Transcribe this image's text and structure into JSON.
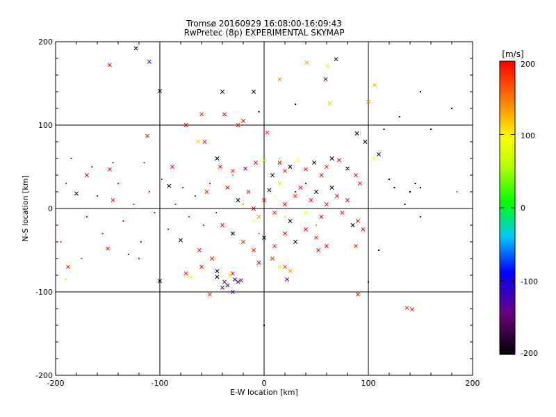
{
  "chart_data": {
    "type": "scatter",
    "title": "Tromsø 20160929 16:08:00-16:09:43",
    "subtitle": "RwPretec (8p) EXPERIMENTAL SKYMAP",
    "xlabel": "E-W location [km]",
    "ylabel": "N-S location [km]",
    "xlim": [
      -200,
      200
    ],
    "ylim": [
      -200,
      200
    ],
    "x_ticks": [
      "-200",
      "-100",
      "0",
      "100",
      "200"
    ],
    "y_ticks": [
      "-200",
      "-100",
      "0",
      "100",
      "200"
    ],
    "grid": true,
    "grid_values": [
      -100,
      0,
      100
    ],
    "colorbar": {
      "unit_label": "[m/s]",
      "range": [
        -200,
        200
      ],
      "ticks": [
        "200",
        "100",
        "0",
        "-100",
        "-200"
      ],
      "colormap": "black-purple-blue-cyan-green-yellow-orange-red"
    },
    "markers": {
      "large": "x (higher-power echoes)",
      "small": "dot (lower-power echoes)"
    },
    "series": [
      {
        "marker": "x",
        "points": [
          [
            -123,
            192,
            -200
          ],
          [
            -110,
            176,
            -120
          ],
          [
            -148,
            172,
            200
          ],
          [
            -100,
            141,
            -200
          ],
          [
            -60,
            113,
            190
          ],
          [
            -38,
            113,
            200
          ],
          [
            -25,
            100,
            190
          ],
          [
            -20,
            105,
            200
          ],
          [
            3,
            91,
            190
          ],
          [
            -112,
            87,
            200
          ],
          [
            -63,
            80,
            60
          ],
          [
            -57,
            80,
            190
          ],
          [
            -10,
            140,
            -200
          ],
          [
            41,
            175,
            140
          ],
          [
            61,
            171,
            70
          ],
          [
            69,
            179,
            -200
          ],
          [
            59,
            155,
            -140
          ],
          [
            15,
            155,
            150
          ],
          [
            63,
            126,
            130
          ],
          [
            106,
            148,
            140
          ],
          [
            100,
            128,
            150
          ],
          [
            89,
            90,
            -200
          ],
          [
            97,
            80,
            -200
          ],
          [
            105,
            60,
            100
          ],
          [
            110,
            65,
            -200
          ],
          [
            137,
            -119,
            190
          ],
          [
            142,
            -121,
            200
          ],
          [
            90,
            -103,
            200
          ],
          [
            -40,
            140,
            -200
          ],
          [
            -75,
            100,
            200
          ],
          [
            -148,
            47,
            200
          ],
          [
            -145,
            10,
            190
          ],
          [
            -150,
            -48,
            200
          ],
          [
            -180,
            18,
            -200
          ],
          [
            -188,
            -70,
            190
          ],
          [
            -170,
            40,
            200
          ],
          [
            -100,
            -87,
            -200
          ],
          [
            -88,
            50,
            200
          ],
          [
            -91,
            27,
            -200
          ],
          [
            -80,
            -38,
            -200
          ],
          [
            -62,
            -50,
            200
          ],
          [
            -55,
            20,
            190
          ],
          [
            -45,
            60,
            -200
          ],
          [
            -42,
            50,
            200
          ],
          [
            -30,
            45,
            190
          ],
          [
            -18,
            48,
            -150
          ],
          [
            -8,
            55,
            200
          ],
          [
            0,
            58,
            60
          ],
          [
            8,
            40,
            -200
          ],
          [
            15,
            55,
            200
          ],
          [
            20,
            45,
            190
          ],
          [
            25,
            50,
            -200
          ],
          [
            32,
            58,
            100
          ],
          [
            40,
            47,
            200
          ],
          [
            48,
            55,
            -200
          ],
          [
            55,
            40,
            200
          ],
          [
            60,
            50,
            190
          ],
          [
            65,
            60,
            -200
          ],
          [
            72,
            58,
            200
          ],
          [
            80,
            48,
            -200
          ],
          [
            88,
            40,
            200
          ],
          [
            92,
            30,
            190
          ],
          [
            -35,
            25,
            200
          ],
          [
            -25,
            10,
            -200
          ],
          [
            -15,
            20,
            190
          ],
          [
            -10,
            0,
            200
          ],
          [
            -5,
            -10,
            150
          ],
          [
            0,
            10,
            200
          ],
          [
            5,
            22,
            -200
          ],
          [
            10,
            -5,
            190
          ],
          [
            15,
            30,
            60
          ],
          [
            20,
            5,
            200
          ],
          [
            25,
            -15,
            -200
          ],
          [
            30,
            15,
            190
          ],
          [
            35,
            25,
            200
          ],
          [
            40,
            -5,
            100
          ],
          [
            45,
            10,
            200
          ],
          [
            50,
            20,
            -200
          ],
          [
            55,
            -10,
            200
          ],
          [
            60,
            5,
            190
          ],
          [
            65,
            25,
            -200
          ],
          [
            70,
            15,
            200
          ],
          [
            75,
            -5,
            190
          ],
          [
            80,
            10,
            200
          ],
          [
            85,
            -20,
            -200
          ],
          [
            90,
            -15,
            200
          ],
          [
            -40,
            -20,
            200
          ],
          [
            -30,
            -30,
            -200
          ],
          [
            -20,
            -40,
            190
          ],
          [
            -10,
            -50,
            200
          ],
          [
            0,
            -35,
            -200
          ],
          [
            10,
            -45,
            190
          ],
          [
            20,
            -30,
            200
          ],
          [
            30,
            -40,
            -200
          ],
          [
            40,
            -25,
            200
          ],
          [
            50,
            -35,
            190
          ],
          [
            60,
            -45,
            200
          ],
          [
            -50,
            -60,
            190
          ],
          [
            -60,
            -70,
            200
          ],
          [
            -45,
            -75,
            -200
          ],
          [
            -30,
            -78,
            200
          ],
          [
            -25,
            -88,
            -160
          ],
          [
            -35,
            -92,
            -130
          ],
          [
            -40,
            -95,
            -150
          ],
          [
            -30,
            -100,
            -140
          ],
          [
            -28,
            -85,
            -120
          ],
          [
            -22,
            -86,
            -150
          ],
          [
            -38,
            -88,
            -140
          ],
          [
            -45,
            -82,
            -200
          ],
          [
            -33,
            -80,
            60
          ],
          [
            -52,
            -103,
            190
          ],
          [
            -70,
            -82,
            80
          ],
          [
            -75,
            -78,
            190
          ],
          [
            20,
            -70,
            180
          ],
          [
            25,
            -75,
            150
          ],
          [
            22,
            -85,
            -140
          ],
          [
            15,
            -70,
            60
          ],
          [
            8,
            -60,
            190
          ],
          [
            -5,
            -65,
            200
          ],
          [
            52,
            -50,
            200
          ],
          [
            88,
            -45,
            190
          ],
          [
            95,
            -25,
            200
          ]
        ]
      },
      {
        "marker": "dot",
        "points": [
          [
            -160,
            15,
            200
          ],
          [
            -170,
            -10,
            190
          ],
          [
            -155,
            -30,
            200
          ],
          [
            -140,
            30,
            190
          ],
          [
            -135,
            -15,
            200
          ],
          [
            -125,
            5,
            190
          ],
          [
            -118,
            -40,
            200
          ],
          [
            -110,
            20,
            190
          ],
          [
            -105,
            -5,
            200
          ],
          [
            -98,
            35,
            190
          ],
          [
            -92,
            -25,
            200
          ],
          [
            -85,
            5,
            190
          ],
          [
            -78,
            25,
            200
          ],
          [
            -72,
            -10,
            190
          ],
          [
            -66,
            15,
            200
          ],
          [
            -58,
            -20,
            190
          ],
          [
            -52,
            30,
            200
          ],
          [
            -46,
            -5,
            190
          ],
          [
            -190,
            30,
            200
          ],
          [
            -195,
            -40,
            190
          ],
          [
            -185,
            60,
            200
          ],
          [
            -175,
            -60,
            190
          ],
          [
            -165,
            50,
            200
          ],
          [
            -145,
            55,
            190
          ],
          [
            -130,
            -55,
            200
          ],
          [
            -115,
            55,
            190
          ],
          [
            -120,
            -60,
            200
          ],
          [
            150,
            140,
            -200
          ],
          [
            160,
            95,
            -200
          ],
          [
            180,
            120,
            -200
          ],
          [
            130,
            110,
            -200
          ],
          [
            115,
            95,
            -200
          ],
          [
            120,
            35,
            -200
          ],
          [
            125,
            25,
            -200
          ],
          [
            140,
            20,
            -200
          ],
          [
            145,
            30,
            -200
          ],
          [
            150,
            25,
            -200
          ],
          [
            135,
            5,
            -200
          ],
          [
            110,
            -50,
            -200
          ],
          [
            150,
            -10,
            -150
          ],
          [
            -5,
            116,
            -200
          ],
          [
            30,
            125,
            -200
          ],
          [
            0,
            -140,
            -200
          ],
          [
            100,
            -88,
            -200
          ],
          [
            -190,
            -85,
            60
          ],
          [
            185,
            20,
            170
          ],
          [
            10,
            15,
            100
          ],
          [
            20,
            -10,
            60
          ],
          [
            30,
            20,
            -150
          ],
          [
            -20,
            5,
            150
          ],
          [
            -10,
            -15,
            80
          ],
          [
            40,
            30,
            -120
          ],
          [
            50,
            -20,
            20
          ],
          [
            -30,
            40,
            -40
          ],
          [
            15,
            60,
            130
          ],
          [
            -5,
            -30,
            170
          ]
        ]
      }
    ]
  }
}
